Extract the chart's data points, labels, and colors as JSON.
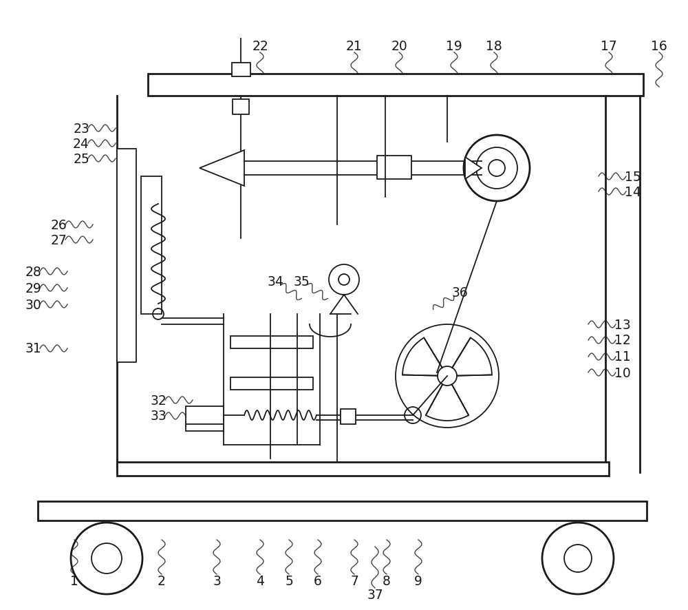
{
  "bg_color": "#ffffff",
  "line_color": "#1a1a1a",
  "label_color": "#1a1a1a",
  "lw_main": 2.0,
  "lw_thin": 1.3
}
